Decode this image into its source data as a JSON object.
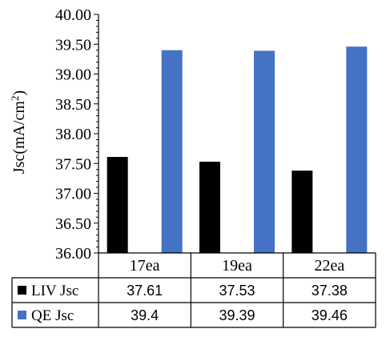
{
  "chart_data": {
    "type": "bar",
    "categories": [
      "17ea",
      "19ea",
      "22ea"
    ],
    "series": [
      {
        "name": "LIV Jsc",
        "color": "#000000",
        "values": [
          37.61,
          37.53,
          37.38
        ],
        "labels": [
          "37.61",
          "37.53",
          "37.38"
        ]
      },
      {
        "name": "QE Jsc",
        "color": "#4472C4",
        "values": [
          39.4,
          39.39,
          39.46
        ],
        "labels": [
          "39.4",
          "39.39",
          "39.46"
        ]
      }
    ],
    "title": "",
    "xlabel": "",
    "ylabel": "Jsc(mA/cm²)",
    "ylim": [
      36.0,
      40.0
    ],
    "yticks": [
      "36.00",
      "36.50",
      "37.00",
      "37.50",
      "38.00",
      "38.50",
      "39.00",
      "39.50",
      "40.00"
    ],
    "grid": false,
    "legend": "data-table"
  }
}
